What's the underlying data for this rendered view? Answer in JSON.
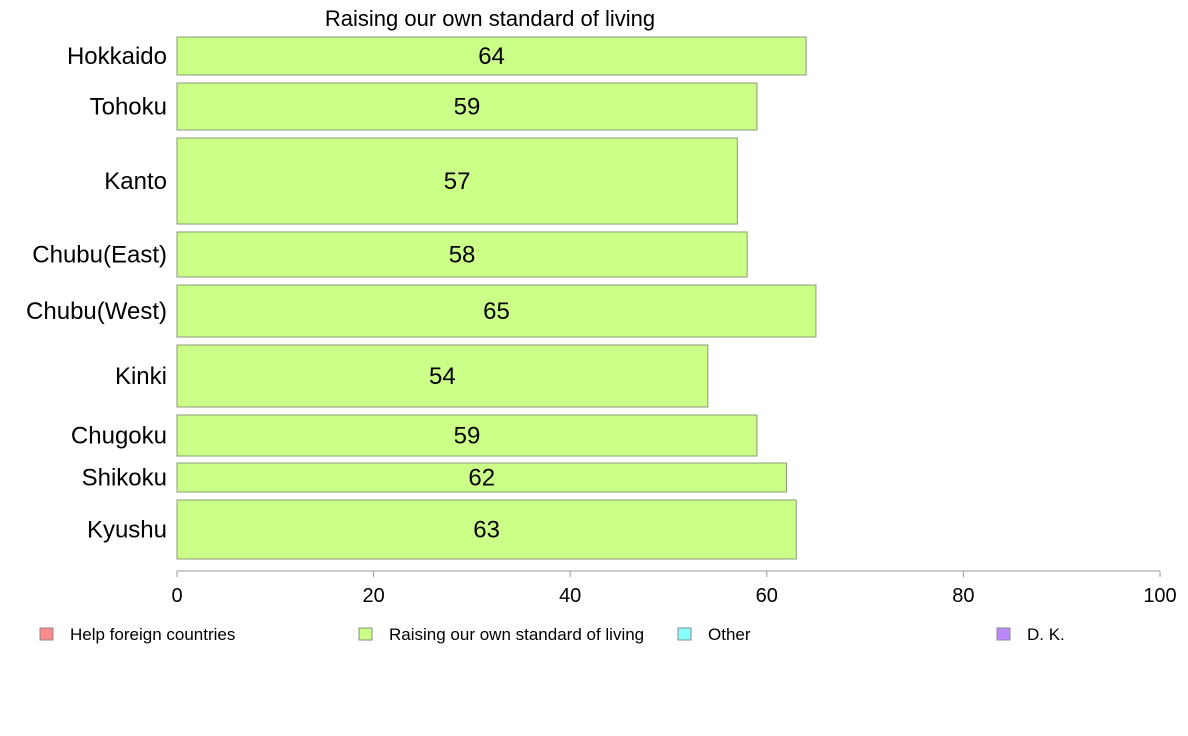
{
  "chart_data": {
    "type": "bar",
    "orientation": "horizontal",
    "title": "Raising our own standard of living",
    "xlabel": "",
    "ylabel": "",
    "xlim": [
      0,
      100
    ],
    "x_ticks": [
      "0",
      "20",
      "40",
      "60",
      "80",
      "100"
    ],
    "grid": false,
    "categories": [
      "Hokkaido",
      "Tohoku",
      "Kanto",
      "Chubu(East)",
      "Chubu(West)",
      "Kinki",
      "Chugoku",
      "Shikoku",
      "Kyushu"
    ],
    "series": [
      {
        "name": "Raising our own standard of living",
        "values": [
          64,
          59,
          57,
          58,
          65,
          54,
          59,
          62,
          63
        ],
        "labels": [
          "64",
          "59",
          "57",
          "58",
          "65",
          "54",
          "59",
          "62",
          "63"
        ],
        "color": "#ccff88"
      }
    ],
    "legend": {
      "position": "bottom",
      "items": [
        {
          "label": "Help foreign countries",
          "color": "#ff8a8a"
        },
        {
          "label": "Raising our own standard of living",
          "color": "#ccff88"
        },
        {
          "label": "Other",
          "color": "#88ffff"
        },
        {
          "label": "D. K.",
          "color": "#bb88ff"
        }
      ]
    }
  }
}
